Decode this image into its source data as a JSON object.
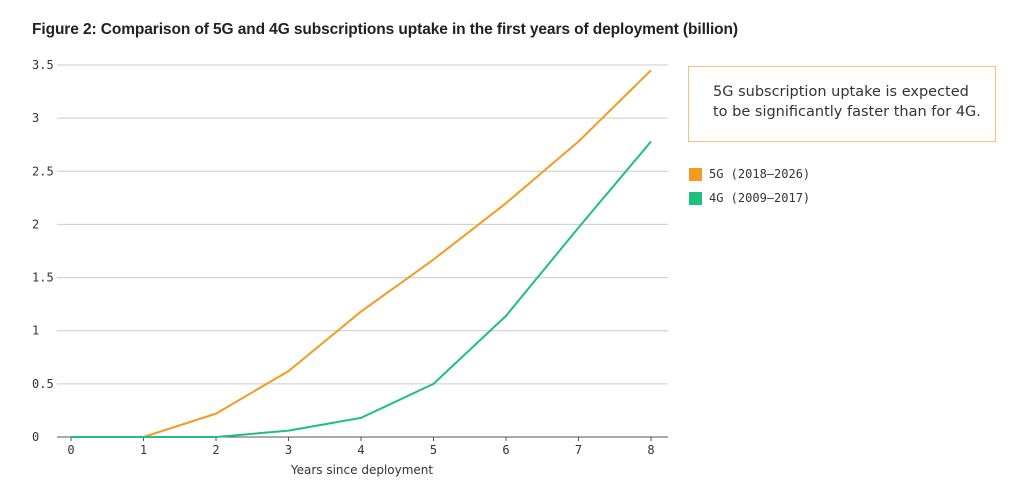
{
  "title": "Figure 2: Comparison of 5G and 4G subscriptions uptake in the first years of deployment (billion)",
  "callout": {
    "line1": "5G subscription uptake is expected",
    "line2": "to be significantly faster than for 4G."
  },
  "colors": {
    "callout_border": "#f4c37c",
    "grid": "#cccccc",
    "axis": "#555555"
  },
  "chart_data": {
    "type": "line",
    "title": "Figure 2: Comparison of 5G and 4G subscriptions uptake in the first years of deployment (billion)",
    "xlabel": "Years since deployment",
    "ylabel": "",
    "x": [
      0,
      1,
      2,
      3,
      4,
      5,
      6,
      7,
      8
    ],
    "x_ticks": [
      "0",
      "1",
      "2",
      "3",
      "4",
      "5",
      "6",
      "7",
      "8"
    ],
    "y_ticks": [
      "0",
      "0.5",
      "1",
      "1.5",
      "2",
      "2.5",
      "3",
      "3.5"
    ],
    "ylim": [
      0,
      3.5
    ],
    "grid": "horizontal",
    "legend_position": "right",
    "series": [
      {
        "name": "5G (2018–2026)",
        "color": "#f59a23",
        "values": [
          0,
          0,
          0.22,
          0.62,
          1.18,
          1.67,
          2.2,
          2.78,
          3.45
        ]
      },
      {
        "name": "4G (2009–2017)",
        "color": "#1fbf7e",
        "values": [
          0,
          0,
          0,
          0.06,
          0.18,
          0.5,
          1.14,
          1.97,
          2.78
        ]
      }
    ]
  }
}
